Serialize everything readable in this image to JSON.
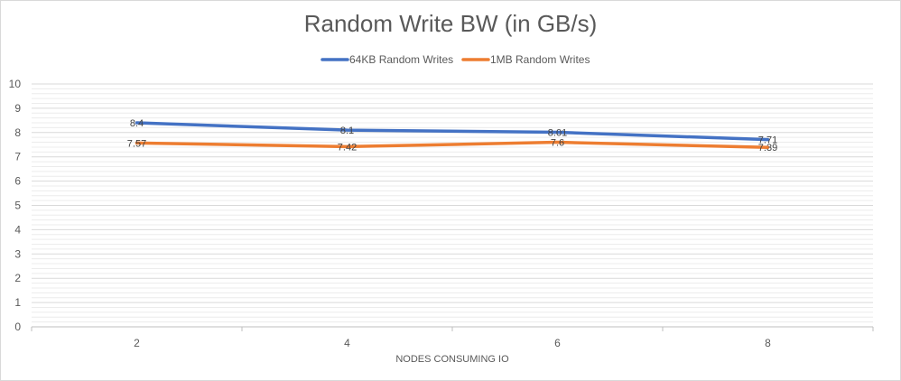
{
  "chart_data": {
    "type": "line",
    "title": "Random Write BW (in GB/s)",
    "xlabel": "NODES CONSUMING IO",
    "ylabel": "",
    "categories": [
      "2",
      "4",
      "6",
      "8"
    ],
    "ylim": [
      0,
      10
    ],
    "yticks": [
      "0",
      "1",
      "2",
      "3",
      "4",
      "5",
      "6",
      "7",
      "8",
      "9",
      "10"
    ],
    "grid": true,
    "legend_position": "top",
    "series": [
      {
        "name": "64KB Random Writes",
        "color": "#4472c4",
        "values": [
          8.4,
          8.1,
          8.01,
          7.71
        ],
        "labels": [
          "8.4",
          "8.1",
          "8.01",
          "7.71"
        ]
      },
      {
        "name": "1MB Random Writes",
        "color": "#ed7d31",
        "values": [
          7.57,
          7.42,
          7.6,
          7.39
        ],
        "labels": [
          "7.57",
          "7.42",
          "7.6",
          "7.39"
        ]
      }
    ]
  }
}
